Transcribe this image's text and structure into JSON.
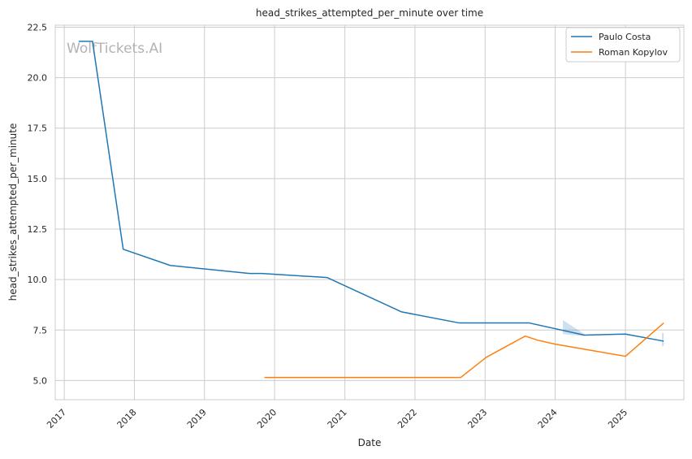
{
  "watermark": "WolfTickets.AI",
  "chart_data": {
    "type": "line",
    "title": "head_strikes_attempted_per_minute over time",
    "xlabel": "Date",
    "ylabel": "head_strikes_attempted_per_minute",
    "x_type": "date",
    "xlim": [
      "2016-11-15",
      "2025-11-01"
    ],
    "ylim": [
      4.05,
      22.6
    ],
    "x_ticks": [
      "2017-01-01",
      "2018-01-01",
      "2019-01-01",
      "2020-01-01",
      "2021-01-01",
      "2022-01-01",
      "2023-01-01",
      "2024-01-01",
      "2025-01-01"
    ],
    "x_tick_labels": [
      "2017",
      "2018",
      "2019",
      "2020",
      "2021",
      "2022",
      "2023",
      "2024",
      "2025"
    ],
    "y_ticks": [
      5.0,
      7.5,
      10.0,
      12.5,
      15.0,
      17.5,
      20.0,
      22.5
    ],
    "y_tick_labels": [
      "5.0",
      "7.5",
      "10.0",
      "12.5",
      "15.0",
      "17.5",
      "20.0",
      "22.5"
    ],
    "grid": true,
    "legend_position": "top-right",
    "series": [
      {
        "name": "Paulo Costa",
        "color": "#1f77b4",
        "points": [
          [
            "2017-03-18",
            21.8
          ],
          [
            "2017-05-28",
            21.8
          ],
          [
            "2017-11-04",
            11.5
          ],
          [
            "2018-07-07",
            10.7
          ],
          [
            "2019-08-24",
            10.3
          ],
          [
            "2019-10-27",
            10.3
          ],
          [
            "2020-10-01",
            10.1
          ],
          [
            "2021-10-23",
            8.4
          ],
          [
            "2022-08-20",
            7.85
          ],
          [
            "2023-08-19",
            7.85
          ],
          [
            "2024-06-01",
            7.25
          ],
          [
            "2025-01-01",
            7.3
          ],
          [
            "2025-07-19",
            6.95
          ]
        ],
        "bands": [
          {
            "from": "2024-02-10",
            "to": "2024-06-01",
            "upper": [
              8.0,
              7.3
            ],
            "lower": [
              7.3,
              7.2
            ]
          },
          {
            "from": "2025-07-10",
            "to": "2025-07-19",
            "upper": [
              7.35,
              7.35
            ],
            "lower": [
              6.7,
              6.7
            ]
          }
        ]
      },
      {
        "name": "Roman Kopylov",
        "color": "#ff7f0e",
        "points": [
          [
            "2019-11-09",
            5.15
          ],
          [
            "2022-08-27",
            5.15
          ],
          [
            "2023-01-07",
            6.15
          ],
          [
            "2023-07-29",
            7.2
          ],
          [
            "2023-09-30",
            7.0
          ],
          [
            "2024-01-01",
            6.8
          ],
          [
            "2025-01-01",
            6.2
          ],
          [
            "2025-07-19",
            7.85
          ]
        ]
      }
    ]
  }
}
